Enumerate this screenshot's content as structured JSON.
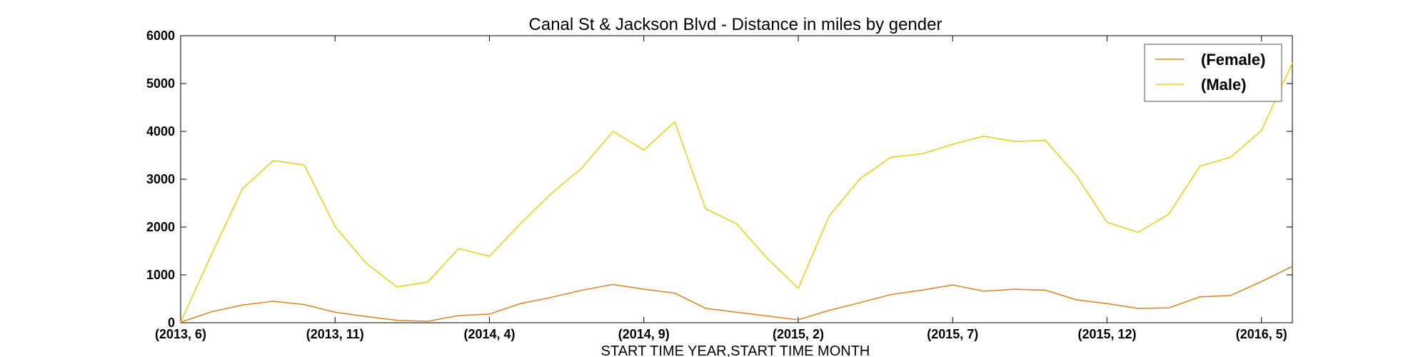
{
  "chart_data": {
    "type": "line",
    "title": "Canal St & Jackson Blvd - Distance in miles by gender",
    "xlabel": "START TIME YEAR,START TIME MONTH",
    "ylabel": "",
    "ylim": [
      0,
      6000
    ],
    "yticks": [
      "0",
      "1000",
      "2000",
      "3000",
      "4000",
      "5000",
      "6000"
    ],
    "x": [
      "(2013, 6)",
      "(2013, 7)",
      "(2013, 8)",
      "(2013, 9)",
      "(2013, 10)",
      "(2013, 11)",
      "(2013, 12)",
      "(2014, 1)",
      "(2014, 2)",
      "(2014, 3)",
      "(2014, 4)",
      "(2014, 5)",
      "(2014, 6)",
      "(2014, 7)",
      "(2014, 8)",
      "(2014, 9)",
      "(2014, 10)",
      "(2014, 11)",
      "(2014, 12)",
      "(2015, 1)",
      "(2015, 2)",
      "(2015, 3)",
      "(2015, 4)",
      "(2015, 5)",
      "(2015, 6)",
      "(2015, 7)",
      "(2015, 8)",
      "(2015, 9)",
      "(2015, 10)",
      "(2015, 11)",
      "(2015, 12)",
      "(2016, 1)",
      "(2016, 2)",
      "(2016, 3)",
      "(2016, 4)",
      "(2016, 5)",
      "(2016, 6)"
    ],
    "xtick_labels": [
      "(2013, 6)",
      "(2013, 11)",
      "(2014, 4)",
      "(2014, 9)",
      "(2015, 2)",
      "(2015, 7)",
      "(2015, 12)",
      "(2016, 5)"
    ],
    "grid": false,
    "legend_position": "top-right",
    "series": [
      {
        "name": "(Female)",
        "color": "#d98b2b",
        "values": [
          10,
          230,
          370,
          450,
          380,
          220,
          130,
          50,
          30,
          150,
          180,
          400,
          530,
          680,
          800,
          700,
          620,
          300,
          220,
          140,
          60,
          260,
          420,
          590,
          680,
          790,
          660,
          700,
          680,
          480,
          400,
          300,
          310,
          540,
          570,
          860,
          1180
        ]
      },
      {
        "name": "(Male)",
        "color": "#e8d31a",
        "values": [
          10,
          1430,
          2800,
          3390,
          3300,
          2010,
          1250,
          750,
          850,
          1550,
          1390,
          2070,
          2700,
          3240,
          4000,
          3610,
          4200,
          2380,
          2070,
          1340,
          720,
          2230,
          3010,
          3460,
          3530,
          3730,
          3900,
          3790,
          3810,
          3080,
          2100,
          1890,
          2270,
          3270,
          3460,
          4020,
          5430
        ]
      }
    ]
  }
}
